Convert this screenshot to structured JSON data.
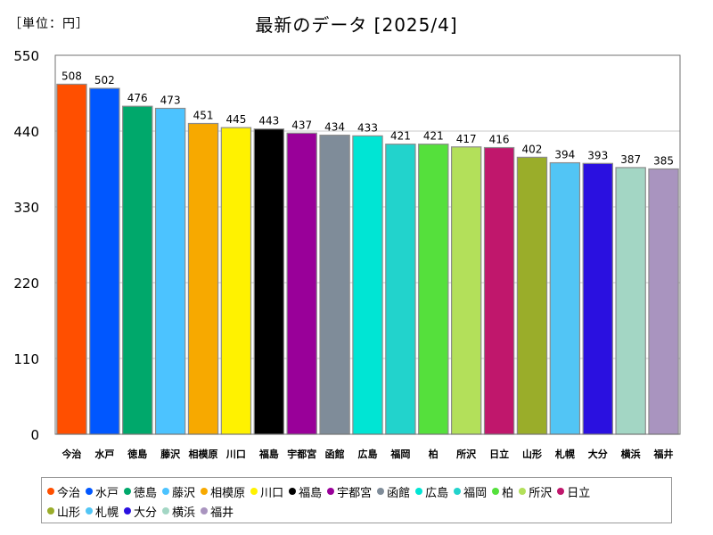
{
  "header": {
    "unit_label": "［単位：円］",
    "title": "最新のデータ [2025/4]"
  },
  "chart_data": {
    "type": "bar",
    "title": "最新のデータ [2025/4]",
    "ylabel": "［単位：円］",
    "xlabel": "",
    "ylim": [
      0,
      550
    ],
    "yticks": [
      0,
      110,
      220,
      330,
      440,
      550
    ],
    "grid": true,
    "legend_position": "bottom",
    "categories": [
      "今治",
      "水戸",
      "徳島",
      "藤沢",
      "相模原",
      "川口",
      "福島",
      "宇都宮",
      "函館",
      "広島",
      "福岡",
      "柏",
      "所沢",
      "日立",
      "山形",
      "札幌",
      "大分",
      "横浜",
      "福井"
    ],
    "values": [
      508,
      502,
      476,
      473,
      451,
      445,
      443,
      437,
      434,
      433,
      421,
      421,
      417,
      416,
      402,
      394,
      393,
      387,
      385
    ],
    "colors": [
      "#ff4f00",
      "#0057ff",
      "#00a86b",
      "#4cc3ff",
      "#f7a900",
      "#fff200",
      "#000000",
      "#990099",
      "#7f8c99",
      "#00e5d4",
      "#22d3cc",
      "#55e03c",
      "#b3e05a",
      "#c0176c",
      "#9aad2a",
      "#52c5f5",
      "#2a10e0",
      "#a3d6c4",
      "#a994bf"
    ]
  }
}
